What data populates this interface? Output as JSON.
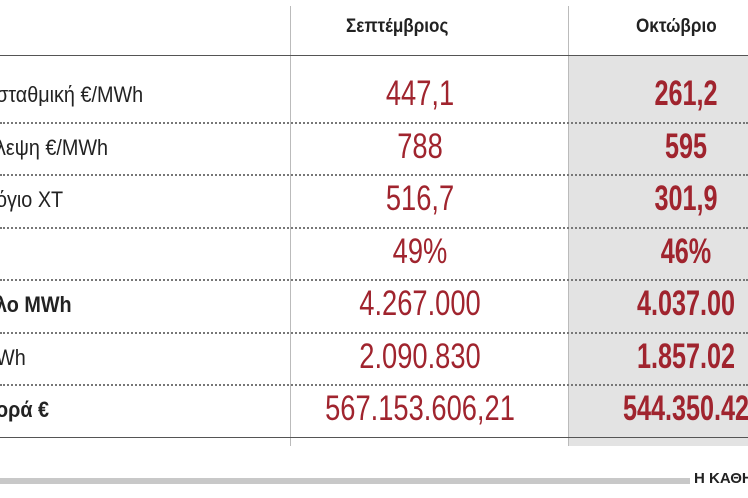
{
  "table": {
    "header": [
      "Σεπτέμβριος",
      "Οκτώβριο"
    ],
    "rows": [
      {
        "label": "σταθμική €/MWh",
        "values": [
          "447,1",
          "261,2"
        ]
      },
      {
        "label": "λεψη €/MWh",
        "values": [
          "788",
          "595"
        ]
      },
      {
        "label": "όγιο ΧΤ",
        "values": [
          "516,7",
          "301,9"
        ]
      },
      {
        "values": [
          "49%",
          "46%"
        ]
      },
      {
        "label": "λο MWh",
        "bold": true,
        "values": [
          "4.267.000",
          "4.037.00"
        ]
      },
      {
        "label": "Wh",
        "values": [
          "2.090.830",
          "1.857.02"
        ]
      },
      {
        "label": "ορά €",
        "bold": true,
        "values": [
          "567.153.606,21",
          "544.350.42"
        ]
      }
    ]
  },
  "footer": {
    "source": "Η ΚΑΘΗ"
  }
}
